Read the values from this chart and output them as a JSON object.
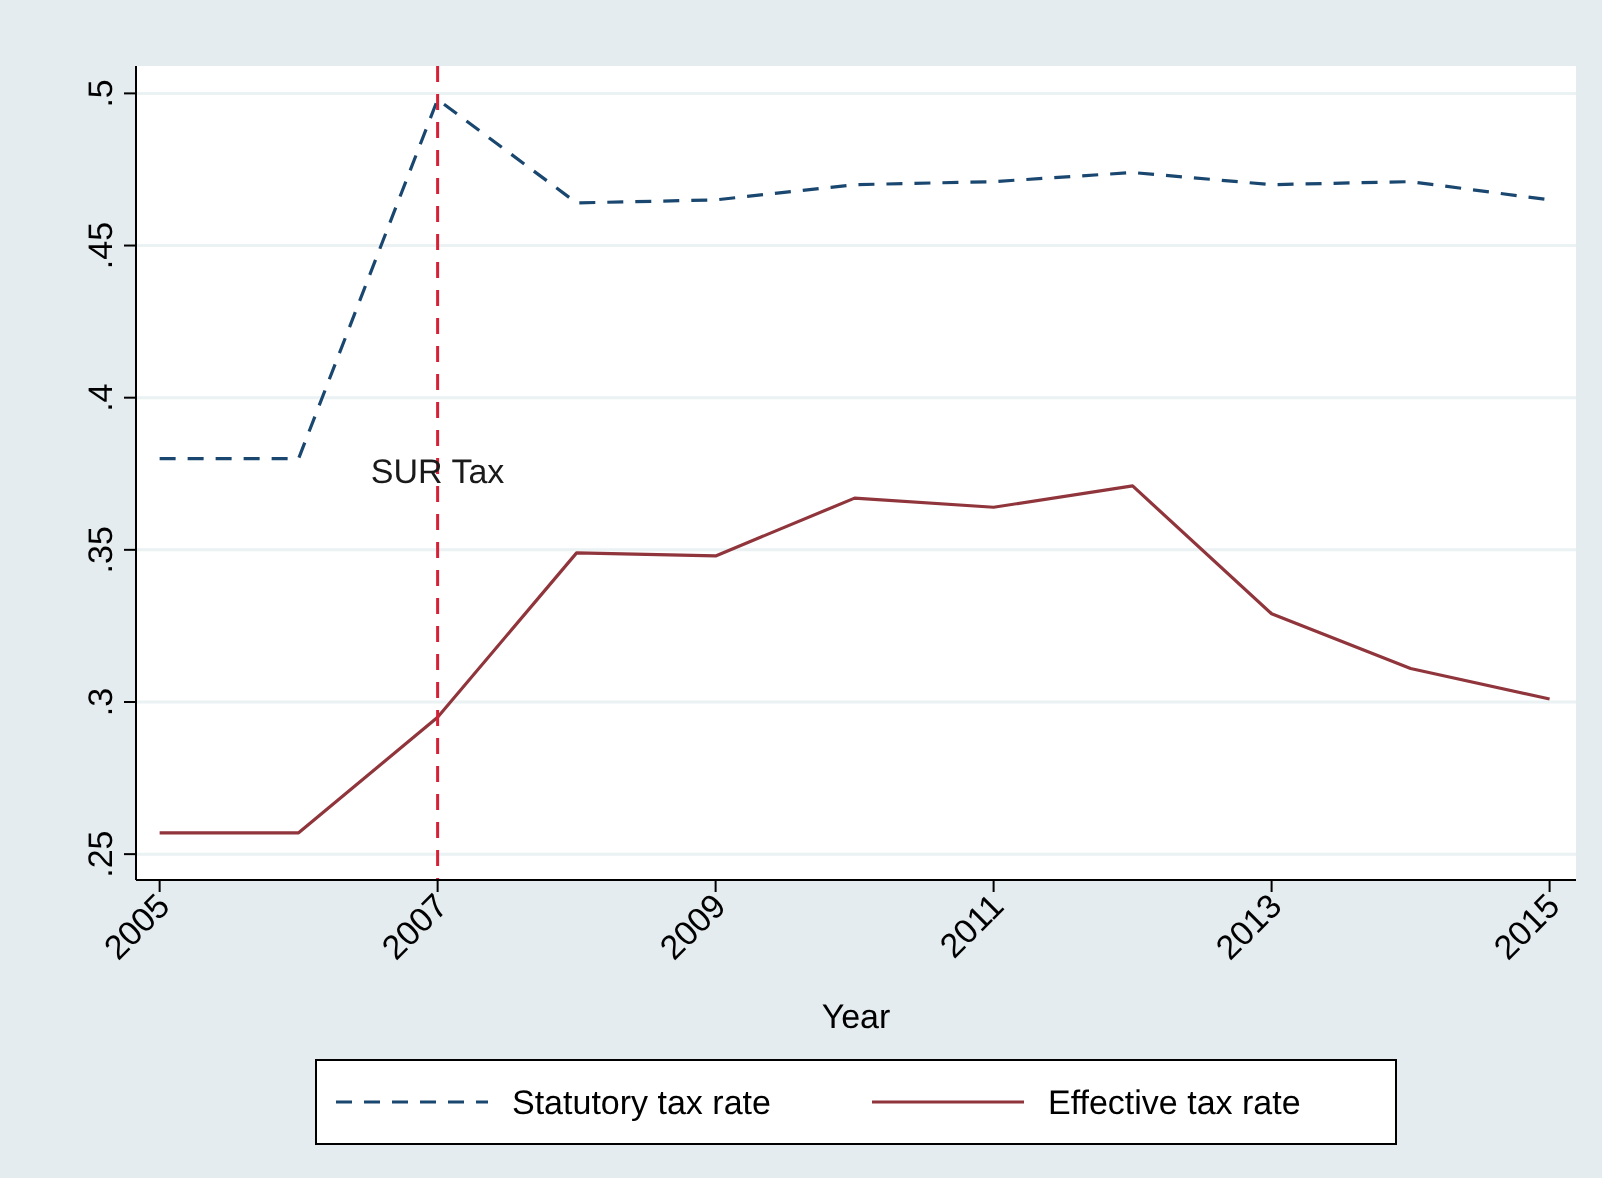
{
  "chart_data": {
    "type": "line",
    "xlabel": "Year",
    "x": [
      2005,
      2006,
      2007,
      2008,
      2009,
      2010,
      2011,
      2012,
      2013,
      2014,
      2015
    ],
    "series": [
      {
        "name": "Statutory tax rate",
        "color": "#1a476f",
        "line_style": "dashed",
        "values": [
          0.38,
          0.38,
          0.498,
          0.464,
          0.465,
          0.47,
          0.471,
          0.474,
          0.47,
          0.471,
          0.465
        ]
      },
      {
        "name": "Effective tax rate",
        "color": "#90353b",
        "line_style": "solid",
        "values": [
          0.257,
          0.257,
          0.295,
          0.349,
          0.348,
          0.367,
          0.364,
          0.371,
          0.329,
          0.311,
          0.301
        ]
      }
    ],
    "xlim": [
      2004.83,
      2015.19
    ],
    "xticks": [
      2005,
      2007,
      2009,
      2011,
      2013,
      2015
    ],
    "ylim": [
      0.2415,
      0.509
    ],
    "yticks": [
      {
        "value": 0.25,
        "label": ".25"
      },
      {
        "value": 0.3,
        "label": ".3"
      },
      {
        "value": 0.35,
        "label": ".35"
      },
      {
        "value": 0.4,
        "label": ".4"
      },
      {
        "value": 0.45,
        "label": ".45"
      },
      {
        "value": 0.5,
        "label": ".5"
      }
    ],
    "ref_lines": [
      {
        "axis": "x",
        "value": 2007,
        "label": "SUR Tax",
        "color": "#d62035",
        "line_style": "dashed"
      }
    ],
    "grid": "y",
    "legend": "bottom",
    "marker": "none"
  }
}
